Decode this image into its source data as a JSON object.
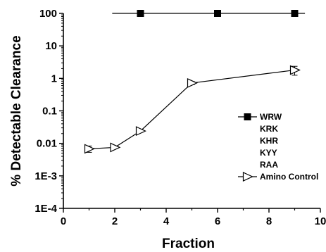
{
  "chart_data": {
    "type": "scatter",
    "title": "",
    "xlabel": "Fraction",
    "ylabel": "% Detectable Clearance",
    "xlim": [
      0,
      10
    ],
    "ylim": [
      0.0001,
      100
    ],
    "yscale": "log",
    "grid": false,
    "legend_placement": "right",
    "x_ticks": [
      "0",
      "2",
      "4",
      "6",
      "8",
      "10"
    ],
    "y_ticks": [
      "1E-4",
      "1E-3",
      "0.01",
      "0.1",
      "1",
      "10",
      "100"
    ],
    "series": [
      {
        "name": "WRW",
        "marker": "filled-square",
        "line": true,
        "x": [
          3,
          6,
          9
        ],
        "y": [
          100,
          100,
          100
        ]
      },
      {
        "name": "KRK",
        "marker": "none",
        "line": false,
        "x": [],
        "y": []
      },
      {
        "name": "KHR",
        "marker": "none",
        "line": false,
        "x": [],
        "y": []
      },
      {
        "name": "KYY",
        "marker": "none",
        "line": false,
        "x": [],
        "y": []
      },
      {
        "name": "RAA",
        "marker": "none",
        "line": false,
        "x": [],
        "y": []
      },
      {
        "name": "Amino Control",
        "marker": "open-right-triangle",
        "line": true,
        "x": [
          1,
          2,
          3,
          5,
          9
        ],
        "y": [
          0.0068,
          0.0075,
          0.024,
          0.72,
          1.8
        ],
        "error": [
          0.0015,
          0.0005,
          0.002,
          0.08,
          0.55
        ]
      }
    ]
  }
}
